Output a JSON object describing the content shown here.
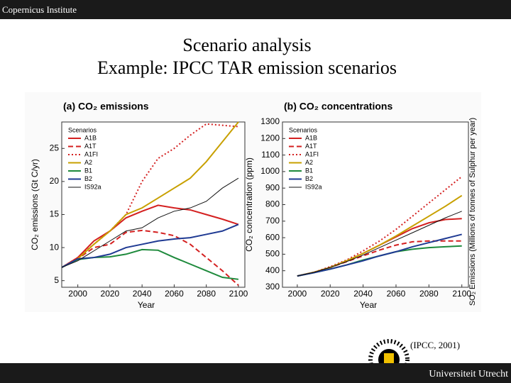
{
  "header": "Copernicus Institute",
  "title": [
    "Scenario analysis",
    "Example: IPCC TAR emission scenarios"
  ],
  "citation": "(IPCC, 2001)",
  "footer": "Universiteit Utrecht",
  "chart_data": [
    {
      "type": "line",
      "title": "(a) CO₂ emissions",
      "xlabel": "Year",
      "ylabel": "CO₂ emissions (Gt C/yr)",
      "legend_title": "Scenarios",
      "xlim": [
        1990,
        2104
      ],
      "ylim": [
        4,
        29
      ],
      "xticks": [
        2000,
        2020,
        2040,
        2060,
        2080,
        2100
      ],
      "yticks": [
        5,
        10,
        15,
        20,
        25
      ],
      "x": [
        1990,
        2000,
        2010,
        2020,
        2030,
        2040,
        2050,
        2060,
        2070,
        2080,
        2090,
        2100
      ],
      "series": [
        {
          "name": "A1B",
          "color": "#d42020",
          "dash": "solid",
          "values": [
            7,
            8.5,
            11,
            12.5,
            14.5,
            15.5,
            16.4,
            16,
            15.7,
            15,
            14.3,
            13.5
          ]
        },
        {
          "name": "A1T",
          "color": "#d42020",
          "dash": "dashed",
          "values": [
            7,
            8.3,
            10,
            10.5,
            12.3,
            12.6,
            12.3,
            11.8,
            10.5,
            8.5,
            6.5,
            4.3
          ]
        },
        {
          "name": "A1FI",
          "color": "#d42020",
          "dash": "dotted",
          "values": [
            7,
            8.5,
            10.5,
            12.5,
            15,
            20,
            23.5,
            25,
            27,
            28.7,
            28.5,
            28.3
          ]
        },
        {
          "name": "A2",
          "color": "#c8a000",
          "dash": "solid",
          "values": [
            7,
            8.3,
            10.5,
            12.5,
            15,
            16,
            17.5,
            19,
            20.5,
            23,
            26,
            29
          ]
        },
        {
          "name": "B1",
          "color": "#1e8a3c",
          "dash": "solid",
          "values": [
            7,
            8.2,
            8.5,
            8.6,
            9,
            9.7,
            9.6,
            8.5,
            7.5,
            6.5,
            5.5,
            5.2
          ]
        },
        {
          "name": "B2",
          "color": "#1f3a93",
          "dash": "solid",
          "values": [
            7,
            8.3,
            8.5,
            9,
            10,
            10.5,
            11,
            11.3,
            11.5,
            12,
            12.5,
            13.5
          ]
        },
        {
          "name": "IS92a",
          "color": "#111111",
          "dash": "thin",
          "values": [
            7,
            8,
            9.5,
            11,
            12.5,
            13,
            14.5,
            15.5,
            16,
            17,
            19,
            20.5
          ]
        }
      ]
    },
    {
      "type": "line",
      "title": "(b) CO₂ concentrations",
      "xlabel": "Year",
      "ylabel": "CO₂ concentration (ppm)",
      "y2label": "SO₂ Emissions (Millions of tonnes of Sulphur per year)",
      "legend_title": "Scenarios",
      "xlim": [
        1991,
        2104
      ],
      "ylim": [
        300,
        1300
      ],
      "xticks": [
        2000,
        2020,
        2040,
        2060,
        2080,
        2100
      ],
      "yticks": [
        300,
        400,
        500,
        600,
        700,
        800,
        900,
        1000,
        1100,
        1200,
        1300
      ],
      "x": [
        2000,
        2010,
        2020,
        2030,
        2040,
        2050,
        2060,
        2070,
        2080,
        2090,
        2100
      ],
      "series": [
        {
          "name": "A1B",
          "color": "#d42020",
          "dash": "solid",
          "values": [
            368,
            390,
            420,
            460,
            505,
            555,
            605,
            655,
            690,
            710,
            715
          ]
        },
        {
          "name": "A1T",
          "color": "#d42020",
          "dash": "dashed",
          "values": [
            368,
            390,
            420,
            455,
            490,
            525,
            555,
            575,
            580,
            580,
            580
          ]
        },
        {
          "name": "A1FI",
          "color": "#d42020",
          "dash": "dotted",
          "values": [
            368,
            390,
            425,
            465,
            520,
            580,
            650,
            730,
            810,
            890,
            970
          ]
        },
        {
          "name": "A2",
          "color": "#c8a000",
          "dash": "solid",
          "values": [
            368,
            390,
            420,
            460,
            505,
            555,
            610,
            670,
            730,
            790,
            855
          ]
        },
        {
          "name": "B1",
          "color": "#1e8a3c",
          "dash": "solid",
          "values": [
            368,
            388,
            410,
            435,
            465,
            490,
            515,
            530,
            540,
            545,
            550
          ]
        },
        {
          "name": "B2",
          "color": "#1f3a93",
          "dash": "solid",
          "values": [
            368,
            388,
            410,
            435,
            460,
            490,
            515,
            545,
            570,
            595,
            620
          ]
        },
        {
          "name": "IS92a",
          "color": "#111111",
          "dash": "thin",
          "values": [
            368,
            390,
            420,
            455,
            495,
            540,
            585,
            630,
            675,
            720,
            760
          ]
        }
      ]
    }
  ]
}
